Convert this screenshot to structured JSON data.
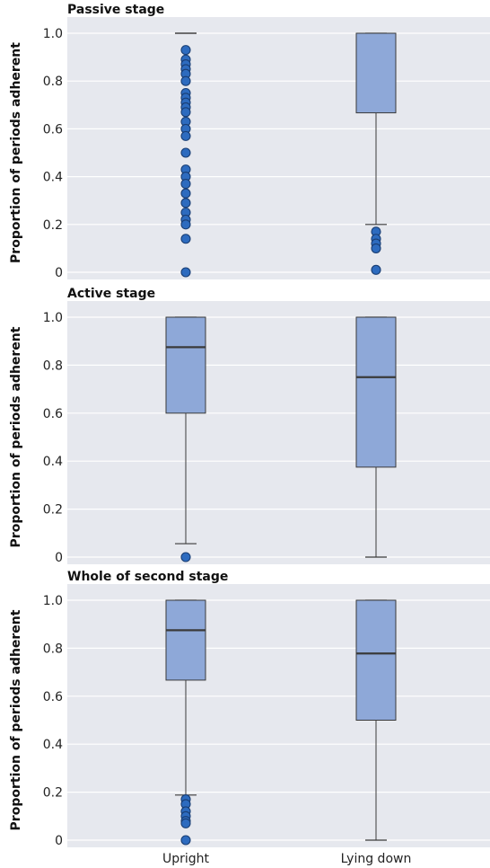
{
  "chart_data": [
    {
      "type": "box",
      "title": "Passive stage",
      "ylabel": "Proportion of periods adherent",
      "ylim": [
        0,
        1
      ],
      "y_ticks": [
        "0",
        "0.2",
        "0.4",
        "0.6",
        "0.8",
        "1.0"
      ],
      "categories": [
        "Upright",
        "Lying down"
      ],
      "boxes": [
        {
          "category": "Upright",
          "q1": 1.0,
          "median": 1.0,
          "q3": 1.0,
          "whisker_low": 1.0,
          "whisker_high": 1.0,
          "outliers": [
            0.93,
            0.89,
            0.87,
            0.85,
            0.83,
            0.8,
            0.75,
            0.73,
            0.71,
            0.69,
            0.67,
            0.63,
            0.6,
            0.57,
            0.5,
            0.43,
            0.4,
            0.37,
            0.33,
            0.29,
            0.25,
            0.22,
            0.2,
            0.14,
            0.0
          ]
        },
        {
          "category": "Lying down",
          "q1": 0.667,
          "median": 1.0,
          "q3": 1.0,
          "whisker_low": 0.2,
          "whisker_high": 1.0,
          "outliers": [
            0.17,
            0.14,
            0.12,
            0.1,
            0.01
          ]
        }
      ]
    },
    {
      "type": "box",
      "title": "Active stage",
      "ylabel": "Proportion of periods adherent",
      "ylim": [
        0,
        1
      ],
      "y_ticks": [
        "0",
        "0.2",
        "0.4",
        "0.6",
        "0.8",
        "1.0"
      ],
      "categories": [
        "Upright",
        "Lying down"
      ],
      "boxes": [
        {
          "category": "Upright",
          "q1": 0.6,
          "median": 0.875,
          "q3": 1.0,
          "whisker_low": 0.056,
          "whisker_high": 1.0,
          "outliers": [
            0.0
          ]
        },
        {
          "category": "Lying down",
          "q1": 0.375,
          "median": 0.75,
          "q3": 1.0,
          "whisker_low": 0.0,
          "whisker_high": 1.0,
          "outliers": []
        }
      ]
    },
    {
      "type": "box",
      "title": "Whole of second stage",
      "ylabel": "Proportion of periods adherent",
      "ylim": [
        0,
        1
      ],
      "y_ticks": [
        "0",
        "0.2",
        "0.4",
        "0.6",
        "0.8",
        "1.0"
      ],
      "categories": [
        "Upright",
        "Lying down"
      ],
      "boxes": [
        {
          "category": "Upright",
          "q1": 0.667,
          "median": 0.875,
          "q3": 1.0,
          "whisker_low": 0.188,
          "whisker_high": 1.0,
          "outliers": [
            0.17,
            0.15,
            0.12,
            0.1,
            0.08,
            0.07,
            0.0
          ]
        },
        {
          "category": "Lying down",
          "q1": 0.5,
          "median": 0.778,
          "q3": 1.0,
          "whisker_low": 0.0,
          "whisker_high": 1.0,
          "outliers": []
        }
      ]
    }
  ],
  "colors": {
    "panel_background": "#e6e8ee",
    "box_fill": "#8ea8d8",
    "outlier_fill": "#2d6bbf",
    "line": "#3a3a3a"
  }
}
